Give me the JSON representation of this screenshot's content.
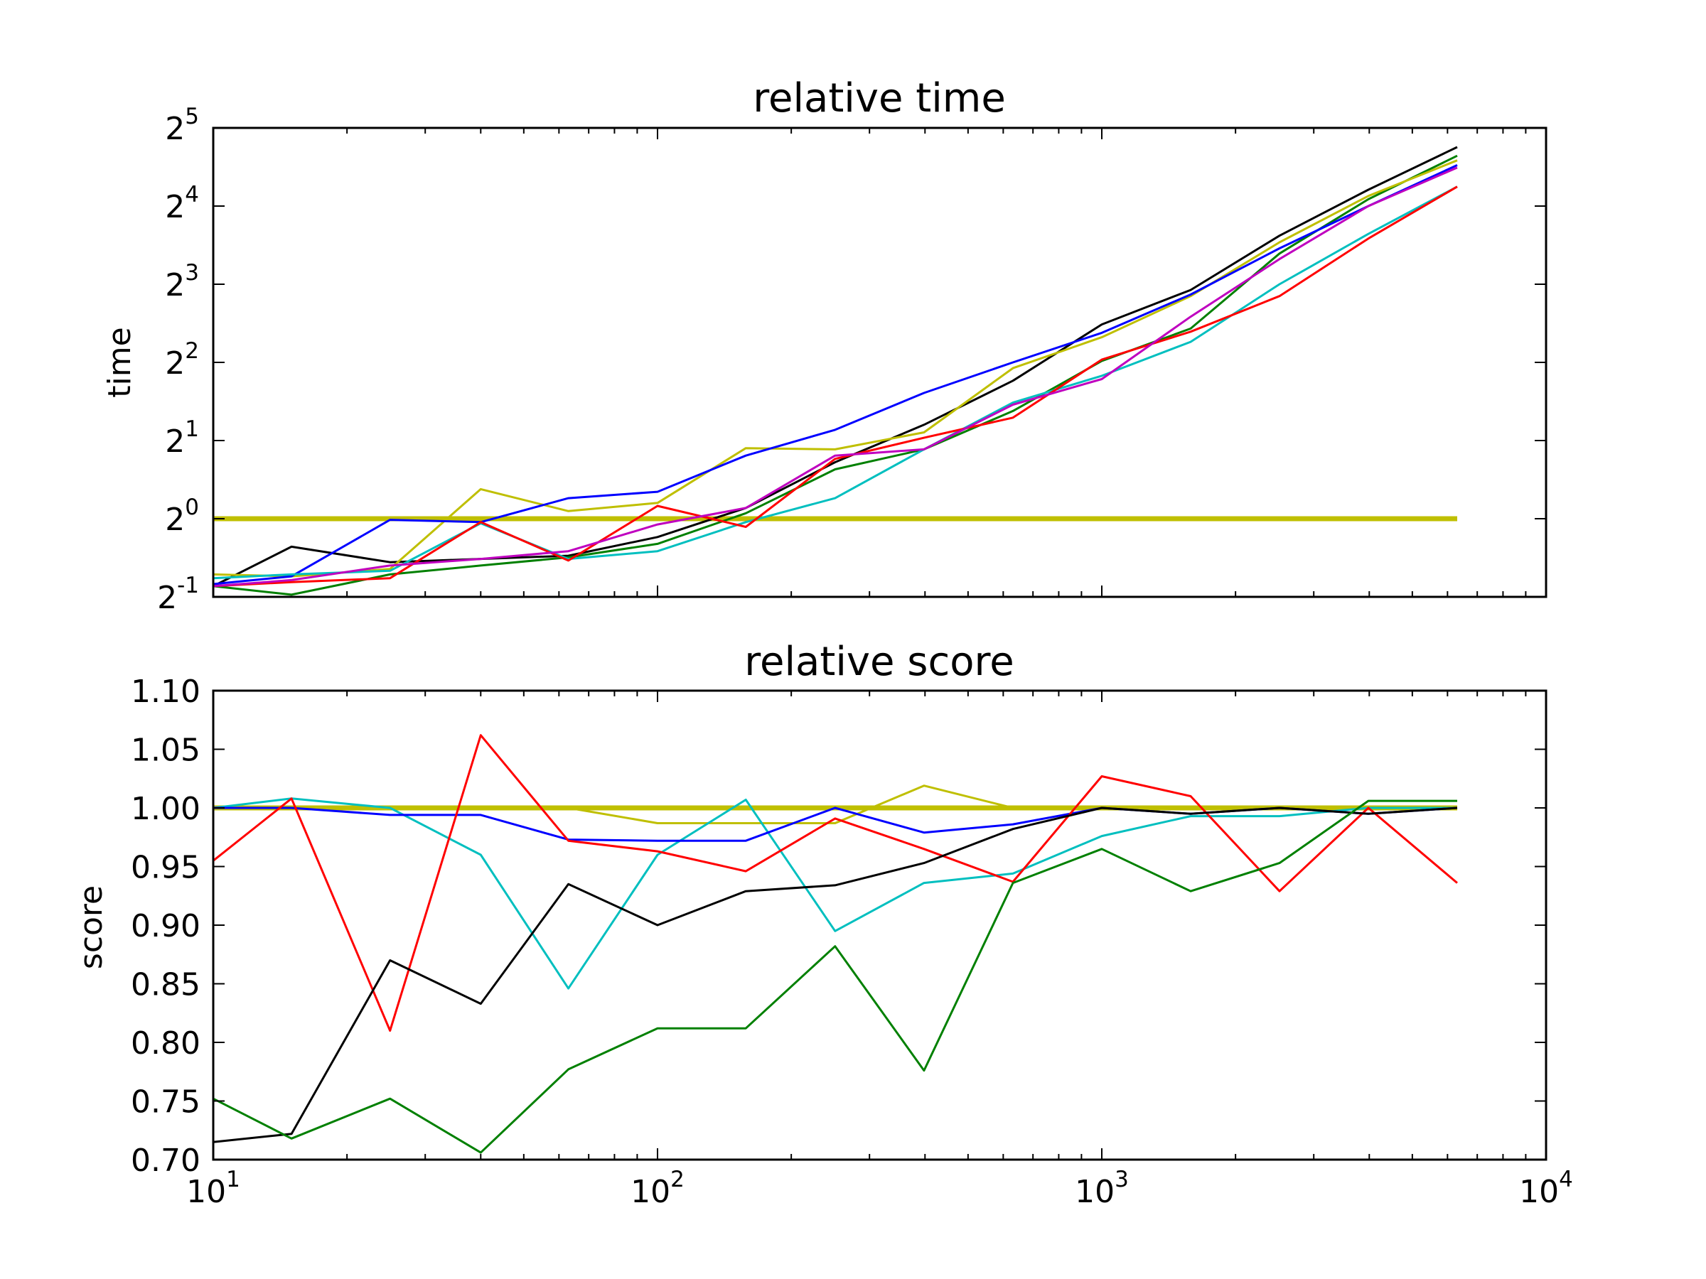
{
  "chart_data": [
    {
      "type": "line",
      "title": "relative time",
      "xlabel": "",
      "ylabel": "time",
      "x_scale": "log10",
      "y_scale": "log2",
      "xlim": [
        10,
        10000
      ],
      "ylim": [
        0.5,
        32
      ],
      "x_ticks": [
        {
          "base": "10",
          "exp": "1"
        },
        {
          "base": "10",
          "exp": "2"
        },
        {
          "base": "10",
          "exp": "3"
        },
        {
          "base": "10",
          "exp": "4"
        }
      ],
      "y_ticks": [
        {
          "base": "2",
          "exp": "-1",
          "value": 0.5
        },
        {
          "base": "2",
          "exp": "0",
          "value": 1
        },
        {
          "base": "2",
          "exp": "1",
          "value": 2
        },
        {
          "base": "2",
          "exp": "2",
          "value": 4
        },
        {
          "base": "2",
          "exp": "3",
          "value": 8
        },
        {
          "base": "2",
          "exp": "4",
          "value": 16
        },
        {
          "base": "2",
          "exp": "5",
          "value": 32
        }
      ],
      "x": [
        10,
        15,
        25,
        40,
        63,
        100,
        158,
        251,
        398,
        631,
        1000,
        1585,
        2512,
        3981,
        6310
      ],
      "series": [
        {
          "color": "#bfbf00",
          "width": 7,
          "values": [
            1,
            1,
            1,
            1,
            1,
            1,
            1,
            1,
            1,
            1,
            1,
            1,
            1,
            1,
            1
          ]
        },
        {
          "color": "#000000",
          "width": 3,
          "values": [
            0.55,
            0.78,
            0.68,
            0.7,
            0.72,
            0.85,
            1.1,
            1.65,
            2.3,
            3.4,
            5.6,
            7.6,
            12.3,
            18.5,
            27
          ]
        },
        {
          "color": "#008000",
          "width": 3,
          "values": [
            0.55,
            0.51,
            0.61,
            0.66,
            0.71,
            0.8,
            1.05,
            1.55,
            1.85,
            2.6,
            4.05,
            5.4,
            10.5,
            17,
            25
          ]
        },
        {
          "color": "#bfbf00",
          "width": 3,
          "values": [
            0.61,
            0.6,
            0.64,
            1.3,
            1.07,
            1.15,
            1.87,
            1.85,
            2.15,
            3.8,
            5,
            7.2,
            11.6,
            17.5,
            24
          ]
        },
        {
          "color": "#0000ff",
          "width": 3,
          "values": [
            0.56,
            0.6,
            0.99,
            0.97,
            1.2,
            1.27,
            1.75,
            2.2,
            3.05,
            4,
            5.2,
            7.3,
            11,
            16,
            23
          ]
        },
        {
          "color": "#00bfbf",
          "width": 3,
          "values": [
            0.59,
            0.61,
            0.63,
            0.96,
            0.7,
            0.75,
            0.97,
            1.2,
            1.85,
            2.8,
            3.55,
            4.8,
            8,
            12.5,
            19
          ]
        },
        {
          "color": "#ff0000",
          "width": 3,
          "values": [
            0.55,
            0.57,
            0.59,
            0.97,
            0.69,
            1.12,
            0.93,
            1.7,
            2.05,
            2.45,
            4.1,
            5.25,
            7.2,
            12,
            19
          ]
        },
        {
          "color": "#bf00bf",
          "width": 3,
          "values": [
            0.55,
            0.58,
            0.66,
            0.7,
            0.75,
            0.95,
            1.1,
            1.75,
            1.85,
            2.75,
            3.45,
            6,
            10,
            16,
            22.5
          ]
        }
      ]
    },
    {
      "type": "line",
      "title": "relative score",
      "xlabel": "",
      "ylabel": "score",
      "x_scale": "log10",
      "y_scale": "linear",
      "xlim": [
        10,
        10000
      ],
      "ylim": [
        0.7,
        1.1
      ],
      "x_ticks": [
        {
          "base": "10",
          "exp": "1"
        },
        {
          "base": "10",
          "exp": "2"
        },
        {
          "base": "10",
          "exp": "3"
        },
        {
          "base": "10",
          "exp": "4"
        }
      ],
      "y_ticks": [
        {
          "label": "0.70",
          "value": 0.7
        },
        {
          "label": "0.75",
          "value": 0.75
        },
        {
          "label": "0.80",
          "value": 0.8
        },
        {
          "label": "0.85",
          "value": 0.85
        },
        {
          "label": "0.90",
          "value": 0.9
        },
        {
          "label": "0.95",
          "value": 0.95
        },
        {
          "label": "1.00",
          "value": 1.0
        },
        {
          "label": "1.05",
          "value": 1.05
        },
        {
          "label": "1.10",
          "value": 1.1
        }
      ],
      "x": [
        10,
        15,
        25,
        40,
        63,
        100,
        158,
        251,
        398,
        631,
        1000,
        1585,
        2512,
        3981,
        6310
      ],
      "series": [
        {
          "color": "#bfbf00",
          "width": 7,
          "values": [
            1,
            1,
            1,
            1,
            1,
            1,
            1,
            1,
            1,
            1,
            1,
            1,
            1,
            1,
            1
          ]
        },
        {
          "color": "#bfbf00",
          "width": 3,
          "values": [
            1.0,
            1.0,
            1.0,
            1.0,
            1.0,
            0.987,
            0.987,
            0.987,
            1.019,
            1.0,
            1.0,
            1.0,
            1.0,
            1.0,
            1.0
          ]
        },
        {
          "color": "#00bfbf",
          "width": 3,
          "values": [
            1.0,
            1.008,
            1.0,
            0.96,
            0.846,
            0.96,
            1.007,
            0.895,
            0.936,
            0.944,
            0.976,
            0.993,
            0.993,
            1.0,
            1.0
          ]
        },
        {
          "color": "#0000ff",
          "width": 3,
          "values": [
            1.0,
            1.0,
            0.994,
            0.994,
            0.973,
            0.972,
            0.972,
            1.0,
            0.979,
            0.986,
            1.0,
            0.995,
            1.0,
            0.995,
            1.0
          ]
        },
        {
          "color": "#ff0000",
          "width": 3,
          "values": [
            0.955,
            1.008,
            0.81,
            1.062,
            0.972,
            0.963,
            0.946,
            0.991,
            0.965,
            0.937,
            1.027,
            1.01,
            0.929,
            1.0,
            0.936
          ]
        },
        {
          "color": "#000000",
          "width": 3,
          "values": [
            0.715,
            0.722,
            0.87,
            0.833,
            0.935,
            0.9,
            0.929,
            0.934,
            0.953,
            0.982,
            1.0,
            0.995,
            1.0,
            0.995,
            1.0
          ]
        },
        {
          "color": "#008000",
          "width": 3,
          "values": [
            0.752,
            0.718,
            0.752,
            0.706,
            0.777,
            0.812,
            0.812,
            0.882,
            0.776,
            0.936,
            0.965,
            0.929,
            0.953,
            1.006,
            1.006
          ]
        }
      ]
    }
  ]
}
